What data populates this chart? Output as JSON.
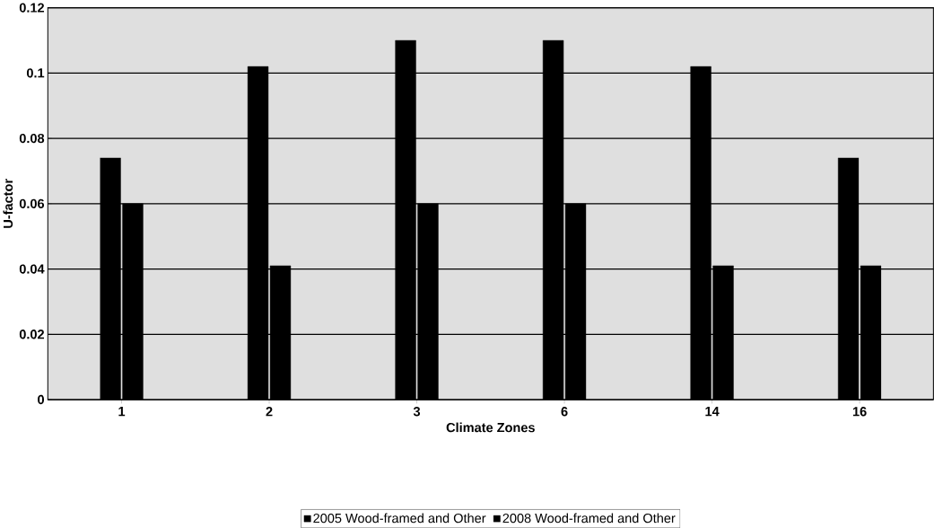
{
  "chart_data": {
    "type": "bar",
    "xlabel": "Climate Zones",
    "ylabel": "U-factor",
    "categories": [
      "1",
      "2",
      "3",
      "6",
      "14",
      "16"
    ],
    "series": [
      {
        "name": "2005 Wood-framed and Other",
        "color": "#000000",
        "values": [
          0.074,
          0.102,
          0.11,
          0.11,
          0.102,
          0.074
        ]
      },
      {
        "name": "2008 Wood-framed and Other",
        "color": "#000000",
        "values": [
          0.06,
          0.041,
          0.06,
          0.06,
          0.041,
          0.041
        ]
      }
    ],
    "ylim": [
      0,
      0.12
    ],
    "yticks": [
      0,
      0.02,
      0.04,
      0.06,
      0.08,
      0.1,
      0.12
    ],
    "grid": "y",
    "legend": "bottom"
  }
}
